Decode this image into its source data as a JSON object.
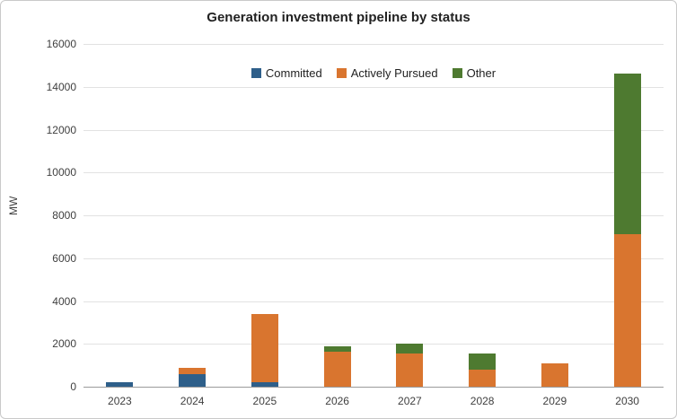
{
  "chart_data": {
    "type": "bar",
    "stacked": true,
    "title": "Generation investment pipeline by status",
    "xlabel": "",
    "ylabel": "MW",
    "categories": [
      "2023",
      "2024",
      "2025",
      "2026",
      "2027",
      "2028",
      "2029",
      "2030"
    ],
    "series": [
      {
        "name": "Committed",
        "color": "#2E5F8A",
        "values": [
          200,
          600,
          200,
          0,
          0,
          0,
          0,
          0
        ]
      },
      {
        "name": "Actively Pursued",
        "color": "#D9752F",
        "values": [
          0,
          300,
          3200,
          1650,
          1550,
          800,
          1100,
          7100
        ]
      },
      {
        "name": "Other",
        "color": "#4E7A30",
        "values": [
          0,
          0,
          0,
          250,
          450,
          750,
          0,
          7500
        ]
      }
    ],
    "ylim": [
      0,
      16000
    ],
    "ytick_step": 2000,
    "grid": "horizontal",
    "legend_position": "top-inside",
    "legend_labels": [
      "Committed",
      "Actively Pursued",
      "Other"
    ]
  }
}
